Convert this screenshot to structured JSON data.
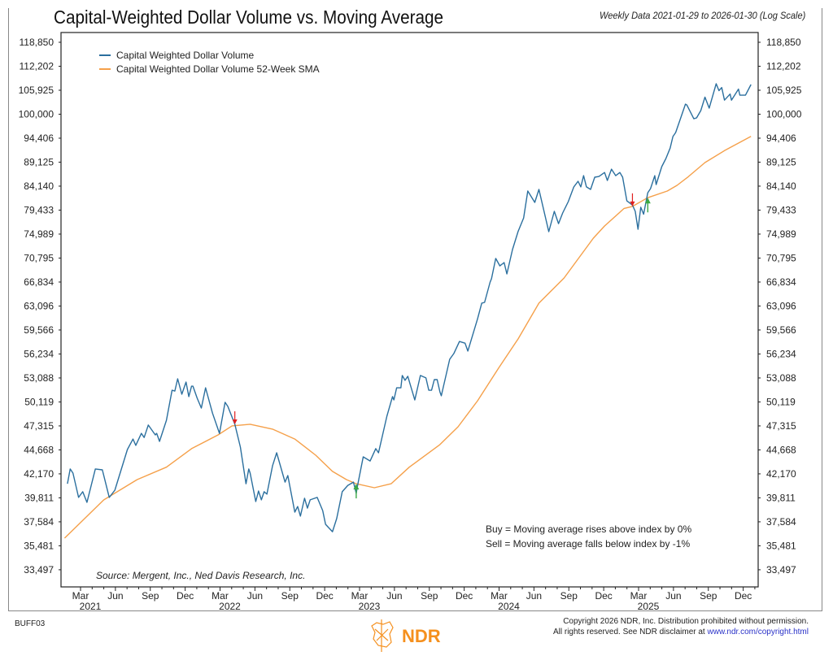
{
  "header": {
    "title": "Capital-Weighted Dollar Volume vs. Moving Average",
    "subtitle": "Weekly Data 2021-01-29 to 2026-01-30 (Log Scale)"
  },
  "chart_data": {
    "type": "line",
    "title": "Capital-Weighted Dollar Volume vs. Moving Average",
    "xlabel": "",
    "ylabel": "",
    "y_scale": "log",
    "ylim": [
      32800,
      122000
    ],
    "xlim": [
      2021.08,
      2026.08
    ],
    "x_units": "decimal year",
    "y_ticks": [
      118850,
      112202,
      105925,
      100000,
      94406,
      89125,
      84140,
      79433,
      74989,
      70795,
      66834,
      63096,
      59566,
      56234,
      53088,
      50119,
      47315,
      44668,
      42170,
      39811,
      37584,
      35481,
      33497
    ],
    "y_tick_labels": [
      "118,850",
      "112,202",
      "105,925",
      "100,000",
      "94,406",
      "89,125",
      "84,140",
      "79,433",
      "74,989",
      "70,795",
      "66,834",
      "63,096",
      "59,566",
      "56,234",
      "53,088",
      "50,119",
      "47,315",
      "44,668",
      "42,170",
      "39,811",
      "37,584",
      "35,481",
      "33,497"
    ],
    "x_tick_labels": [
      "Mar",
      "Jun",
      "Sep",
      "Dec"
    ],
    "x_year_labels": [
      "2021",
      "2022",
      "2023",
      "2024",
      "2025"
    ],
    "legend": {
      "placement": "top-left"
    },
    "series": [
      {
        "name": "Capital Weighted Dollar Volume",
        "color": "#2b6f9e",
        "x": [
          2021.07,
          2021.09,
          2021.11,
          2021.15,
          2021.18,
          2021.21,
          2021.27,
          2021.32,
          2021.37,
          2021.41,
          2021.5,
          2021.54,
          2021.56,
          2021.6,
          2021.62,
          2021.65,
          2021.7,
          2021.71,
          2021.73,
          2021.78,
          2021.82,
          2021.84,
          2021.86,
          2021.89,
          2021.92,
          2021.94,
          2021.96,
          2021.97,
          2022.0,
          2022.03,
          2022.06,
          2022.11,
          2022.16,
          2022.2,
          2022.22,
          2022.27,
          2022.31,
          2022.35,
          2022.37,
          2022.38,
          2022.42,
          2022.44,
          2022.46,
          2022.48,
          2022.5,
          2022.54,
          2022.57,
          2022.63,
          2022.65,
          2022.7,
          2022.72,
          2022.74,
          2022.77,
          2022.79,
          2022.81,
          2022.86,
          2022.9,
          2022.92,
          2022.97,
          2023.0,
          2023.04,
          2023.08,
          2023.12,
          2023.14,
          2023.15,
          2023.19,
          2023.24,
          2023.28,
          2023.3,
          2023.36,
          2023.4,
          2023.41,
          2023.43,
          2023.46,
          2023.47,
          2023.49,
          2023.51,
          2023.56,
          2023.6,
          2023.64,
          2023.66,
          2023.68,
          2023.7,
          2023.72,
          2023.74,
          2023.75,
          2023.81,
          2023.84,
          2023.88,
          2023.92,
          2023.94,
          2024.01,
          2024.04,
          2024.06,
          2024.1,
          2024.11,
          2024.14,
          2024.17,
          2024.2,
          2024.22,
          2024.26,
          2024.3,
          2024.34,
          2024.37,
          2024.42,
          2024.45,
          2024.52,
          2024.56,
          2024.59,
          2024.62,
          2024.66,
          2024.7,
          2024.73,
          2024.75,
          2024.77,
          2024.79,
          2024.82,
          2024.85,
          2024.88,
          2024.92,
          2024.94,
          2024.97,
          2025.0,
          2025.03,
          2025.05,
          2025.08,
          2025.12,
          2025.14,
          2025.16,
          2025.18,
          2025.2,
          2025.23,
          2025.25,
          2025.28,
          2025.29,
          2025.33,
          2025.36,
          2025.39,
          2025.41,
          2025.43,
          2025.47,
          2025.5,
          2025.51,
          2025.56,
          2025.58,
          2025.61,
          2025.64,
          2025.67,
          2025.72,
          2025.74,
          2025.76,
          2025.78,
          2025.82,
          2025.83,
          2025.88,
          2025.89,
          2025.93,
          2025.97
        ],
        "values": [
          41180,
          42670,
          42250,
          39850,
          40400,
          39380,
          42670,
          42580,
          39850,
          40550,
          44710,
          45850,
          45150,
          46480,
          46020,
          47410,
          46300,
          46480,
          45590,
          47960,
          51540,
          51440,
          52980,
          51050,
          52570,
          50760,
          52050,
          52050,
          50560,
          49380,
          51840,
          48790,
          46480,
          50070,
          49580,
          47500,
          44970,
          41180,
          42670,
          42250,
          39460,
          40470,
          39620,
          40400,
          40160,
          42990,
          44360,
          41340,
          42000,
          38470,
          38990,
          38100,
          39770,
          38840,
          39620,
          39850,
          38610,
          37360,
          36700,
          37880,
          40400,
          41020,
          41340,
          40240,
          41020,
          43930,
          43490,
          44800,
          44360,
          48430,
          50760,
          50360,
          51840,
          51840,
          53400,
          52780,
          53300,
          50360,
          53400,
          53090,
          51540,
          51540,
          52880,
          52880,
          51340,
          50860,
          55520,
          56290,
          57940,
          57710,
          56620,
          61200,
          63530,
          63650,
          66834,
          67360,
          70730,
          69480,
          70030,
          68140,
          72250,
          75430,
          77950,
          83150,
          80910,
          83480,
          75430,
          79200,
          76900,
          78890,
          81070,
          83980,
          85130,
          83980,
          86280,
          83980,
          83480,
          85960,
          86120,
          86940,
          85290,
          87640,
          86280,
          86940,
          85960,
          81220,
          80400,
          79200,
          75870,
          79980,
          78660,
          82820,
          83650,
          86280,
          84470,
          88170,
          89910,
          92190,
          94780,
          95700,
          99510,
          102450,
          102250,
          98920,
          99120,
          100880,
          104190,
          101470,
          107580,
          105820,
          106600,
          103430,
          104960,
          103430,
          106210,
          104680,
          104680,
          107380
        ]
      },
      {
        "name": "Capital Weighted Dollar Volume 52-Week SMA",
        "color": "#f5a04a",
        "x": [
          2021.05,
          2021.33,
          2021.57,
          2021.78,
          2021.96,
          2022.15,
          2022.25,
          2022.38,
          2022.54,
          2022.7,
          2022.85,
          2022.97,
          2023.07,
          2023.14,
          2023.27,
          2023.39,
          2023.52,
          2023.74,
          2023.87,
          2024.01,
          2024.16,
          2024.3,
          2024.45,
          2024.63,
          2024.84,
          2024.92,
          2025.06,
          2025.12,
          2025.23,
          2025.37,
          2025.44,
          2025.52,
          2025.64,
          2025.78,
          2025.97
        ],
        "values": [
          36140,
          39610,
          41590,
          42850,
          44800,
          46300,
          47315,
          47500,
          46950,
          45850,
          44100,
          42420,
          41590,
          41180,
          40790,
          41180,
          42850,
          45240,
          47220,
          50260,
          54340,
          58280,
          63530,
          67490,
          74260,
          76460,
          79750,
          80150,
          81830,
          83150,
          84300,
          86070,
          89040,
          91630,
          94810
        ]
      }
    ],
    "signals": [
      {
        "type": "sell",
        "x": 2022.27,
        "value": 47500,
        "color": "#e02020"
      },
      {
        "type": "buy",
        "x": 2023.14,
        "value": 41180,
        "color": "#3aa845"
      },
      {
        "type": "sell",
        "x": 2025.12,
        "value": 80150,
        "color": "#e02020"
      },
      {
        "type": "buy",
        "x": 2025.23,
        "value": 81830,
        "color": "#3aa845"
      }
    ],
    "annotations": {
      "buy_rule": "Buy = Moving average rises above index by 0%",
      "sell_rule": "Sell = Moving average falls below index by -1%",
      "source": "Source:   Mergent, Inc., Ned Davis Research, Inc."
    }
  },
  "footer": {
    "code": "BUFF03",
    "copyright_line1": "Copyright 2026 NDR, Inc. Distribution prohibited without permission.",
    "copyright_line2": "All rights reserved. See NDR disclaimer at ",
    "link": "www.ndr.com/copyright.html",
    "logo_text": "NDR",
    "logo_color": "#f5901e"
  }
}
